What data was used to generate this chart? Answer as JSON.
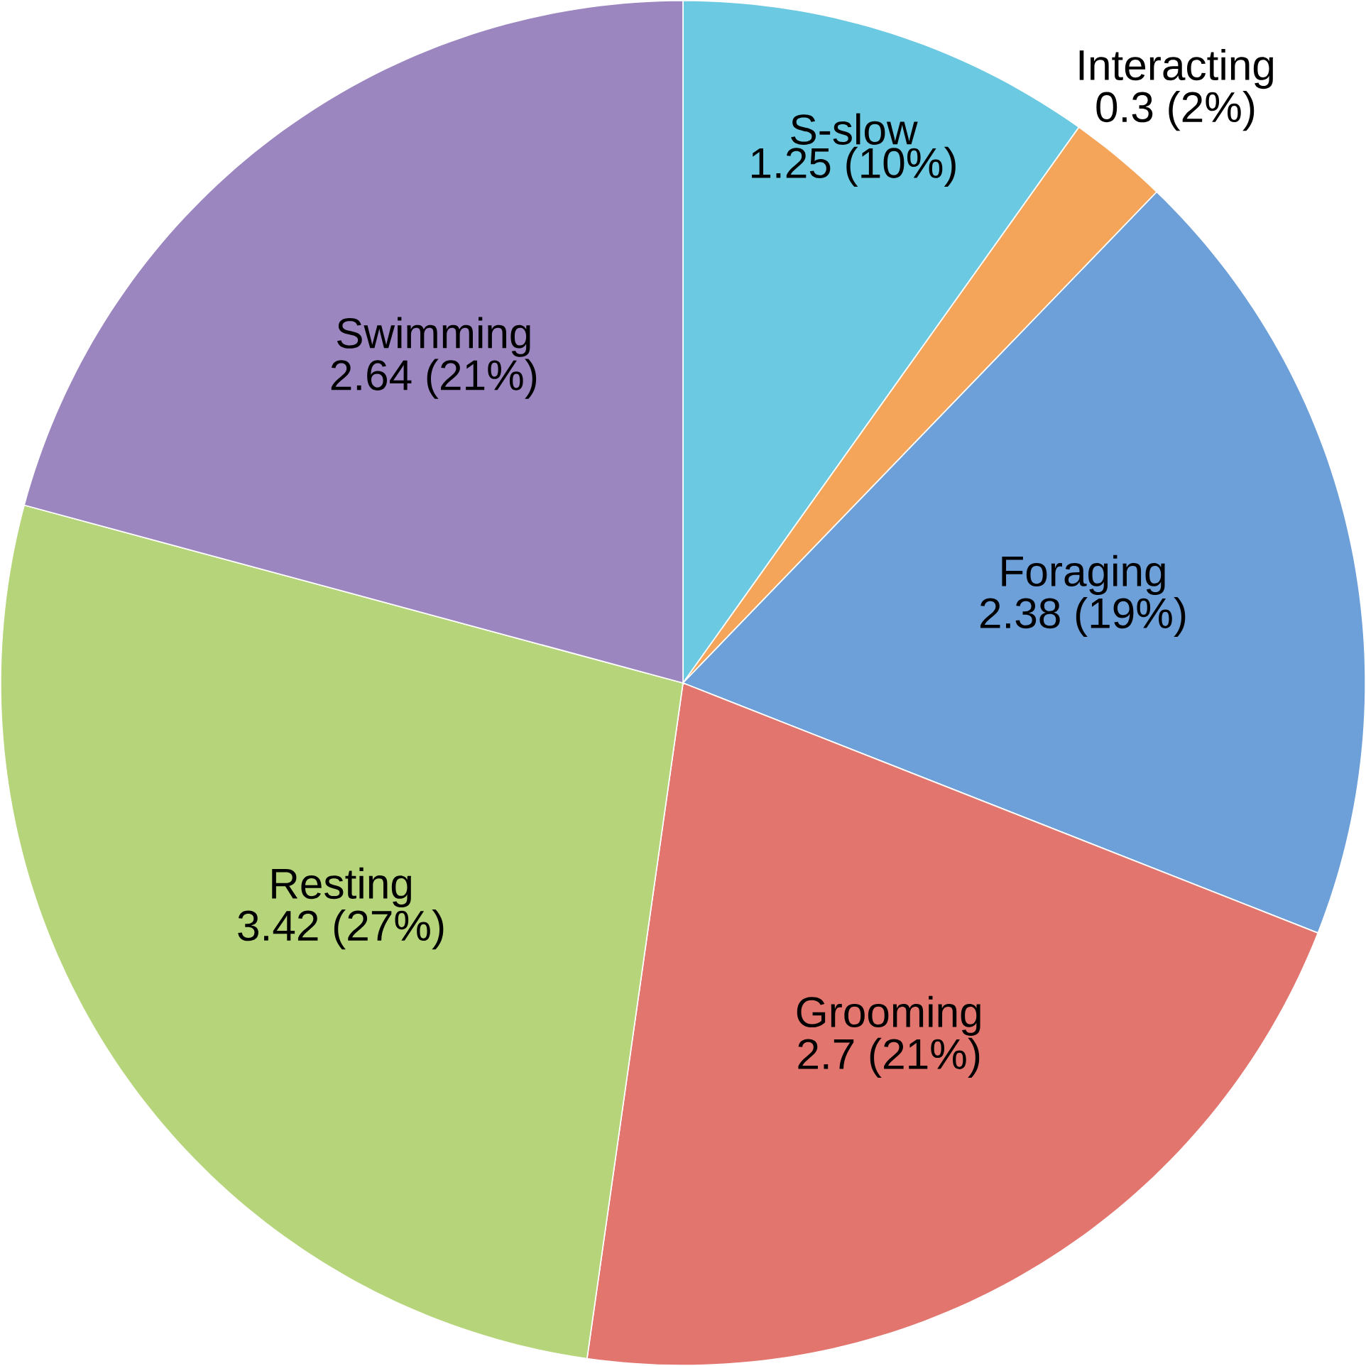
{
  "chart_data": {
    "type": "pie",
    "categories": [
      "S-slow",
      "Interacting",
      "Foraging",
      "Grooming",
      "Resting",
      "Swimming"
    ],
    "values": [
      1.25,
      0.3,
      2.38,
      2.7,
      3.42,
      2.64
    ],
    "value_labels": [
      "1.25 (10%)",
      "0.3 (2%)",
      "2.38 (19%)",
      "2.7 (21%)",
      "3.42 (27%)",
      "2.64 (21%)"
    ],
    "colors": [
      "#6cc9e2",
      "#f5a55a",
      "#6d9fd9",
      "#e2766f",
      "#b6d57b",
      "#9b86c0"
    ]
  }
}
